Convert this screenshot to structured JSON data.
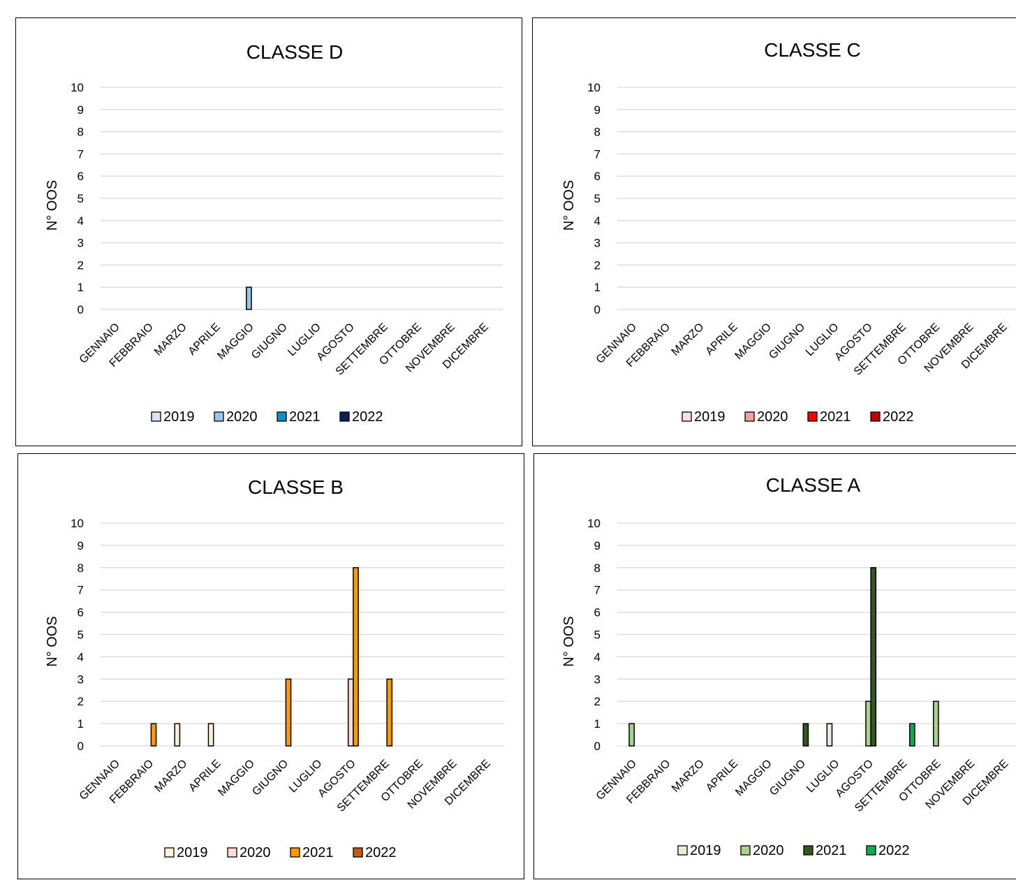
{
  "chart_data": [
    {
      "type": "bar",
      "title": "CLASSE D",
      "ylabel": "N° OOS",
      "xlabel": "",
      "ylim": [
        0,
        10
      ],
      "yticks": [
        0,
        1,
        2,
        3,
        4,
        5,
        6,
        7,
        8,
        9,
        10
      ],
      "grid": true,
      "legend_position": "bottom",
      "categories": [
        "GENNAIO",
        "FEBBRAIO",
        "MARZO",
        "APRILE",
        "MAGGIO",
        "GIUGNO",
        "LUGLIO",
        "AGOSTO",
        "SETTEMBRE",
        "OTTOBRE",
        "NOVEMBRE",
        "DICEMBRE"
      ],
      "series": [
        {
          "name": "2019",
          "color": "#dae3f3",
          "values": [
            0,
            0,
            0,
            0,
            0,
            0,
            0,
            0,
            0,
            0,
            0,
            0
          ]
        },
        {
          "name": "2020",
          "color": "#9dc3e6",
          "values": [
            0,
            0,
            0,
            0,
            1,
            0,
            0,
            0,
            0,
            0,
            0,
            0
          ]
        },
        {
          "name": "2021",
          "color": "#0f8fc7",
          "values": [
            0,
            0,
            0,
            0,
            0,
            0,
            0,
            0,
            0,
            0,
            0,
            0
          ]
        },
        {
          "name": "2022",
          "color": "#0b1f5c",
          "values": [
            0,
            0,
            0,
            0,
            0,
            0,
            0,
            0,
            0,
            0,
            0,
            0
          ]
        }
      ]
    },
    {
      "type": "bar",
      "title": "CLASSE C",
      "ylabel": "N° OOS",
      "xlabel": "",
      "ylim": [
        0,
        10
      ],
      "yticks": [
        0,
        1,
        2,
        3,
        4,
        5,
        6,
        7,
        8,
        9,
        10
      ],
      "grid": true,
      "legend_position": "bottom",
      "categories": [
        "GENNAIO",
        "FEBBRAIO",
        "MARZO",
        "APRILE",
        "MAGGIO",
        "GIUGNO",
        "LUGLIO",
        "AGOSTO",
        "SETTEMBRE",
        "OTTOBRE",
        "NOVEMBRE",
        "DICEMBRE"
      ],
      "series": [
        {
          "name": "2019",
          "color": "#fbe1de",
          "values": [
            0,
            0,
            0,
            0,
            0,
            0,
            0,
            0,
            0,
            0,
            0,
            0
          ]
        },
        {
          "name": "2020",
          "color": "#f4a09a",
          "values": [
            0,
            0,
            0,
            0,
            0,
            0,
            0,
            0,
            0,
            0,
            0,
            0
          ]
        },
        {
          "name": "2021",
          "color": "#ff0000",
          "values": [
            0,
            0,
            0,
            0,
            0,
            0,
            0,
            0,
            0,
            0,
            0,
            0
          ]
        },
        {
          "name": "2022",
          "color": "#c00000",
          "values": [
            0,
            0,
            0,
            0,
            0,
            0,
            0,
            0,
            0,
            0,
            0,
            0
          ]
        }
      ]
    },
    {
      "type": "bar",
      "title": "CLASSE B",
      "ylabel": "N° OOS",
      "xlabel": "",
      "ylim": [
        0,
        10
      ],
      "yticks": [
        0,
        1,
        2,
        3,
        4,
        5,
        6,
        7,
        8,
        9,
        10
      ],
      "grid": true,
      "legend_position": "bottom",
      "categories": [
        "GENNAIO",
        "FEBBRAIO",
        "MARZO",
        "APRILE",
        "MAGGIO",
        "GIUGNO",
        "LUGLIO",
        "AGOSTO",
        "SETTEMBRE",
        "OTTOBRE",
        "NOVEMBRE",
        "DICEMBRE"
      ],
      "series": [
        {
          "name": "2019",
          "color": "#fdf0d8",
          "values": [
            0,
            0,
            1,
            1,
            0,
            0,
            0,
            0,
            0,
            0,
            0,
            0
          ]
        },
        {
          "name": "2020",
          "color": "#fbdcd6",
          "values": [
            0,
            0,
            0,
            0,
            0,
            0,
            0,
            3,
            0,
            0,
            0,
            0
          ]
        },
        {
          "name": "2021",
          "color": "#ff9900",
          "values": [
            0,
            1,
            0,
            0,
            0,
            3,
            0,
            8,
            3,
            0,
            0,
            0
          ]
        },
        {
          "name": "2022",
          "color": "#c55a11",
          "values": [
            0,
            0,
            0,
            0,
            0,
            0,
            0,
            0,
            0,
            0,
            0,
            0
          ]
        }
      ]
    },
    {
      "type": "bar",
      "title": "CLASSE A",
      "ylabel": "N° OOS",
      "xlabel": "",
      "ylim": [
        0,
        10
      ],
      "yticks": [
        0,
        1,
        2,
        3,
        4,
        5,
        6,
        7,
        8,
        9,
        10
      ],
      "grid": true,
      "legend_position": "bottom",
      "categories": [
        "GENNAIO",
        "FEBBRAIO",
        "MARZO",
        "APRILE",
        "MAGGIO",
        "GIUGNO",
        "LUGLIO",
        "AGOSTO",
        "SETTEMBRE",
        "OTTOBRE",
        "NOVEMBRE",
        "DICEMBRE"
      ],
      "series": [
        {
          "name": "2019",
          "color": "#e2f0d9",
          "values": [
            0,
            0,
            0,
            0,
            0,
            0,
            1,
            0,
            0,
            0,
            0,
            0
          ]
        },
        {
          "name": "2020",
          "color": "#a9d18e",
          "values": [
            1,
            0,
            0,
            0,
            0,
            0,
            0,
            2,
            0,
            2,
            0,
            0
          ]
        },
        {
          "name": "2021",
          "color": "#375623",
          "values": [
            0,
            0,
            0,
            0,
            0,
            1,
            0,
            8,
            0,
            0,
            0,
            0
          ]
        },
        {
          "name": "2022",
          "color": "#00b050",
          "values": [
            0,
            0,
            0,
            0,
            0,
            0,
            0,
            0,
            1,
            0,
            0,
            0
          ]
        }
      ]
    }
  ]
}
